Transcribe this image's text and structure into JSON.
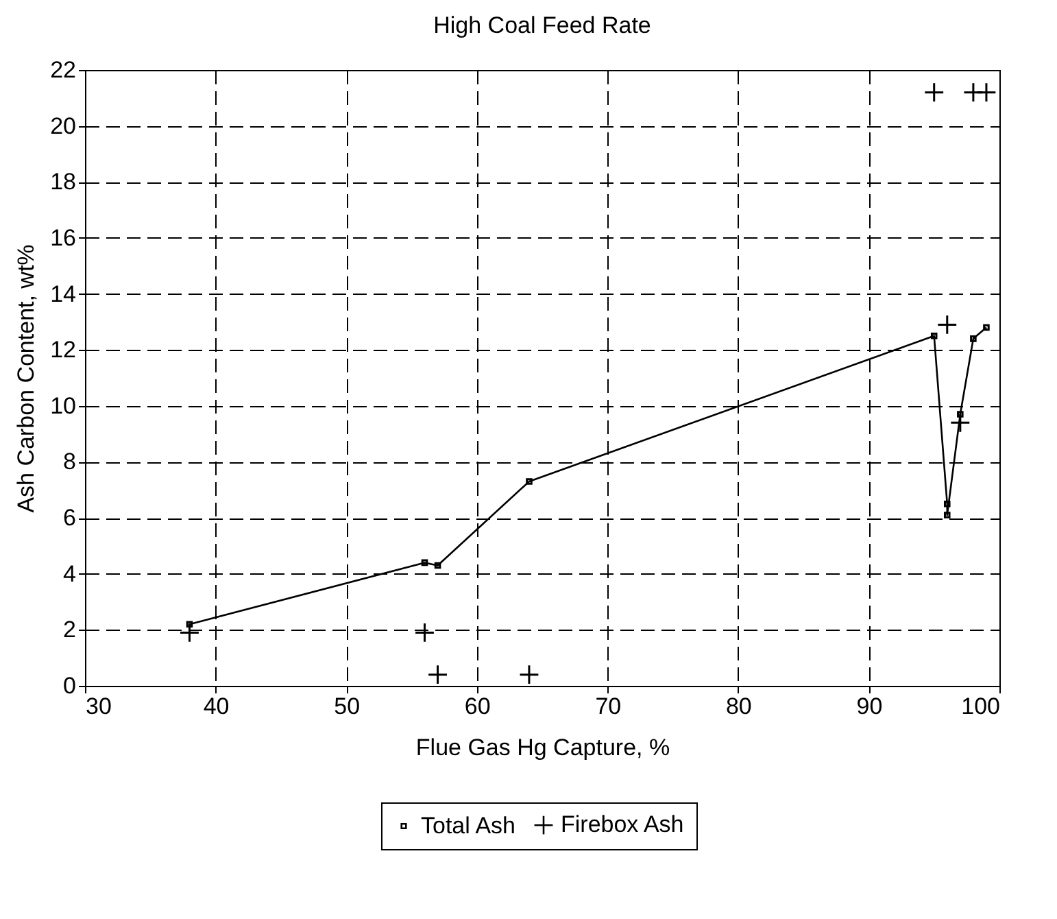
{
  "chart_data": {
    "type": "line",
    "title": "High Coal Feed Rate",
    "xlabel": "Flue Gas Hg Capture, %",
    "ylabel": "Ash Carbon Content, wt%",
    "xlim": [
      30,
      100
    ],
    "xticks": [
      30,
      40,
      50,
      60,
      70,
      80,
      90,
      100
    ],
    "ylim": [
      0,
      22
    ],
    "yticks": [
      0,
      2,
      4,
      6,
      8,
      10,
      12,
      14,
      16,
      18,
      20,
      22
    ],
    "grid": true,
    "legend": "bottom",
    "series": [
      {
        "name": "Total Ash",
        "marker": "square",
        "line_style": "solid",
        "color": "#000000",
        "x": [
          38,
          56,
          57,
          64,
          95,
          96,
          96,
          97,
          98,
          99
        ],
        "values": [
          2.2,
          4.4,
          4.3,
          7.3,
          12.5,
          6.5,
          6.1,
          9.7,
          12.4,
          12.8
        ]
      },
      {
        "name": "Firebox Ash",
        "type": "scatter",
        "marker": "cross",
        "color": "#000000",
        "x": [
          38,
          56,
          57,
          64,
          95,
          96,
          97,
          98,
          99
        ],
        "values": [
          1.9,
          1.9,
          0.4,
          0.4,
          21.2,
          12.9,
          9.4,
          21.2,
          21.2
        ]
      }
    ]
  }
}
